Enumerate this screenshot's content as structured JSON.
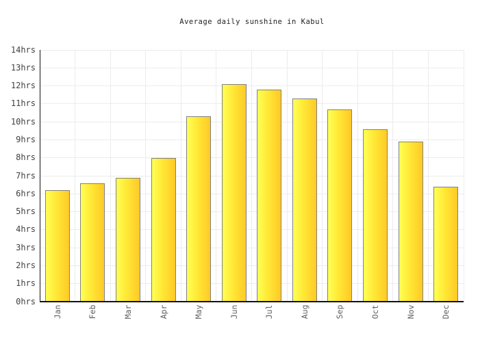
{
  "chart_data": {
    "type": "bar",
    "title": "Average daily sunshine in Kabul",
    "categories": [
      "Jan",
      "Feb",
      "Mar",
      "Apr",
      "May",
      "Jun",
      "Jul",
      "Aug",
      "Sep",
      "Oct",
      "Nov",
      "Dec"
    ],
    "values": [
      6.2,
      6.6,
      6.9,
      8,
      10.3,
      12.1,
      11.8,
      11.3,
      10.7,
      9.6,
      8.9,
      6.4
    ],
    "unit": "hrs",
    "xlabel": "",
    "ylabel": "",
    "ylim": [
      0,
      14
    ],
    "ytick_step": 1,
    "ytick_labels": [
      "0hrs",
      "1hrs",
      "2hrs",
      "3hrs",
      "4hrs",
      "5hrs",
      "6hrs",
      "7hrs",
      "8hrs",
      "9hrs",
      "10hrs",
      "11hrs",
      "12hrs",
      "13hrs",
      "14hrs"
    ],
    "grid": "on",
    "legend": "none",
    "colors": {
      "bar_gradient_left": "#ffff55",
      "bar_gradient_mid": "#ffe835",
      "bar_gradient_right": "#ffc928",
      "bar_border": "#808080",
      "axis_line": "#111111",
      "gridline": "#ececec",
      "title_text": "#222222",
      "ytick_text": "#3f3f3f",
      "xtick_text": "#616161"
    }
  }
}
